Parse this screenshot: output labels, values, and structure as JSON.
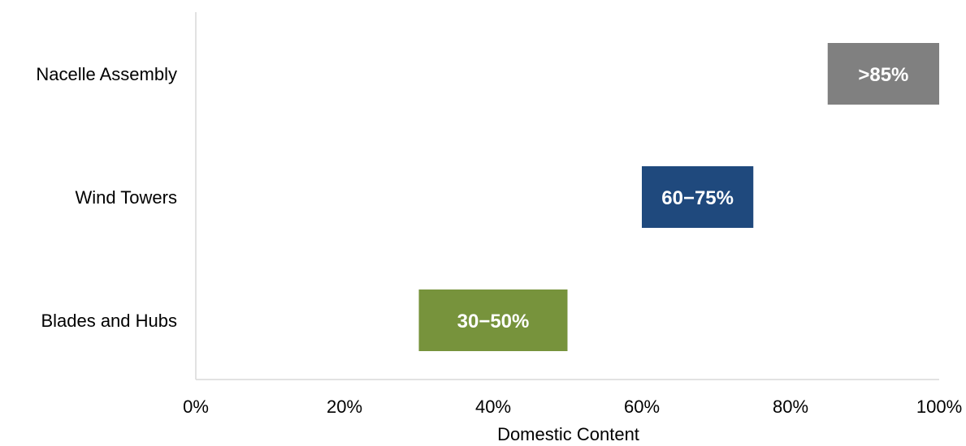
{
  "chart_data": {
    "type": "bar",
    "orientation": "horizontal",
    "style": "floating-range",
    "categories": [
      "Nacelle Assembly",
      "Wind Towers",
      "Blades and Hubs"
    ],
    "ranges": [
      {
        "category": "Nacelle Assembly",
        "start": 85,
        "end": 100,
        "label": ">85%",
        "color": "#808080"
      },
      {
        "category": "Wind Towers",
        "start": 60,
        "end": 75,
        "label": "60−75%",
        "color": "#1F497D"
      },
      {
        "category": "Blades and Hubs",
        "start": 30,
        "end": 50,
        "label": "30−50%",
        "color": "#77933C"
      }
    ],
    "xlabel": "Domestic Content",
    "xlim": [
      0,
      100
    ],
    "xticks": [
      {
        "value": 0,
        "label": "0%"
      },
      {
        "value": 20,
        "label": "20%"
      },
      {
        "value": 40,
        "label": "40%"
      },
      {
        "value": 60,
        "label": "60%"
      },
      {
        "value": 80,
        "label": "80%"
      },
      {
        "value": 100,
        "label": "100%"
      }
    ],
    "grid": false,
    "legend": "none"
  }
}
